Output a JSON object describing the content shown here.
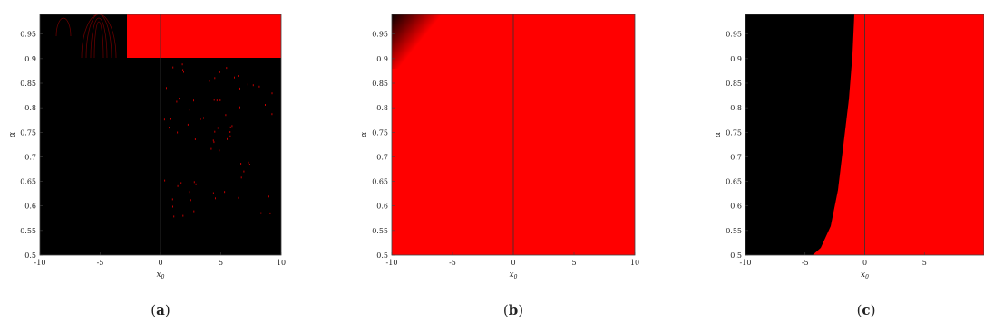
{
  "chart_data": [
    {
      "type": "heatmap",
      "panel_label": "a",
      "xlabel": "x_0",
      "ylabel": "α",
      "xlim": [
        -10,
        10
      ],
      "ylim": [
        0.5,
        0.99
      ],
      "xticks": [
        "-10",
        "-5",
        "0",
        "5",
        "10"
      ],
      "yticks": [
        "0.5",
        "0.55",
        "0.6",
        "0.65",
        "0.7",
        "0.75",
        "0.8",
        "0.85",
        "0.9",
        "0.95"
      ],
      "colors": {
        "region_1": "#000000",
        "region_2": "#ff0000"
      },
      "reference_line_x": 0
    },
    {
      "type": "heatmap",
      "panel_label": "b",
      "xlabel": "x_0",
      "ylabel": "α",
      "xlim": [
        -10,
        10
      ],
      "ylim": [
        0.5,
        0.99
      ],
      "xticks": [
        "-10",
        "-5",
        "0",
        "5",
        "10"
      ],
      "yticks": [
        "0.5",
        "0.55",
        "0.6",
        "0.65",
        "0.7",
        "0.75",
        "0.8",
        "0.85",
        "0.9",
        "0.95"
      ],
      "colors": {
        "region_1": "#000000",
        "region_2": "#ff0000"
      },
      "reference_line_x": 0
    },
    {
      "type": "heatmap",
      "panel_label": "c",
      "xlabel": "x_0",
      "ylabel": "α",
      "xlim": [
        -10,
        10
      ],
      "ylim": [
        0.5,
        0.99
      ],
      "xticks": [
        "-10",
        "-5",
        "0",
        "5"
      ],
      "yticks": [
        "0.5",
        "0.55",
        "0.6",
        "0.65",
        "0.7",
        "0.75",
        "0.8",
        "0.85",
        "0.9",
        "0.95"
      ],
      "colors": {
        "region_1": "#000000",
        "region_2": "#ff0000"
      },
      "reference_line_x": 0
    }
  ]
}
